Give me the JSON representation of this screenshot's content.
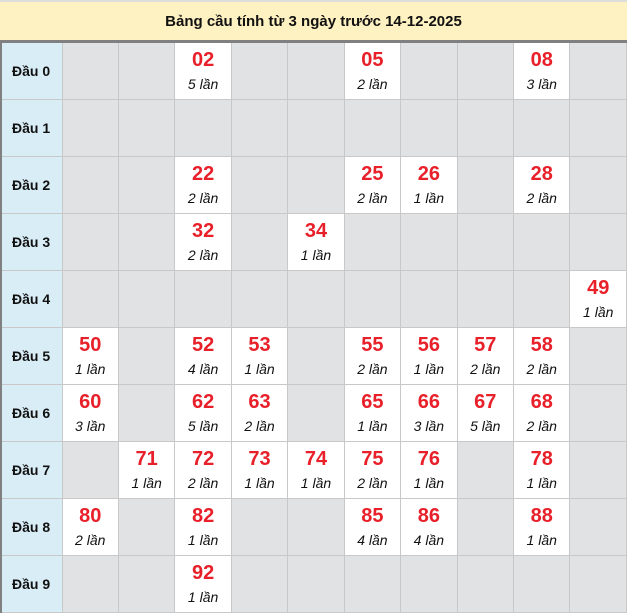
{
  "title": "Bảng cầu tính từ 3 ngày trước 14-12-2025",
  "colors": {
    "number": "#e8202a",
    "header_bg": "#fff2c2",
    "row_label_bg": "#d9edf7",
    "empty_bg": "#e1e2e4"
  },
  "rows": [
    {
      "label": "Đầu 0",
      "cells": [
        null,
        null,
        {
          "num": "02",
          "count": "5 lần"
        },
        null,
        null,
        {
          "num": "05",
          "count": "2 lần"
        },
        null,
        null,
        {
          "num": "08",
          "count": "3 lần"
        },
        null
      ]
    },
    {
      "label": "Đầu 1",
      "cells": [
        null,
        null,
        null,
        null,
        null,
        null,
        null,
        null,
        null,
        null
      ]
    },
    {
      "label": "Đầu 2",
      "cells": [
        null,
        null,
        {
          "num": "22",
          "count": "2 lần"
        },
        null,
        null,
        {
          "num": "25",
          "count": "2 lần"
        },
        {
          "num": "26",
          "count": "1 lần"
        },
        null,
        {
          "num": "28",
          "count": "2 lần"
        },
        null
      ]
    },
    {
      "label": "Đầu 3",
      "cells": [
        null,
        null,
        {
          "num": "32",
          "count": "2 lần"
        },
        null,
        {
          "num": "34",
          "count": "1 lần"
        },
        null,
        null,
        null,
        null,
        null
      ]
    },
    {
      "label": "Đầu 4",
      "cells": [
        null,
        null,
        null,
        null,
        null,
        null,
        null,
        null,
        null,
        {
          "num": "49",
          "count": "1 lần"
        }
      ]
    },
    {
      "label": "Đầu 5",
      "cells": [
        {
          "num": "50",
          "count": "1 lần"
        },
        null,
        {
          "num": "52",
          "count": "4 lần"
        },
        {
          "num": "53",
          "count": "1 lần"
        },
        null,
        {
          "num": "55",
          "count": "2 lần"
        },
        {
          "num": "56",
          "count": "1 lần"
        },
        {
          "num": "57",
          "count": "2 lần"
        },
        {
          "num": "58",
          "count": "2 lần"
        },
        null
      ]
    },
    {
      "label": "Đầu 6",
      "cells": [
        {
          "num": "60",
          "count": "3 lần"
        },
        null,
        {
          "num": "62",
          "count": "5 lần"
        },
        {
          "num": "63",
          "count": "2 lần"
        },
        null,
        {
          "num": "65",
          "count": "1 lần"
        },
        {
          "num": "66",
          "count": "3 lần"
        },
        {
          "num": "67",
          "count": "5 lần"
        },
        {
          "num": "68",
          "count": "2 lần"
        },
        null
      ]
    },
    {
      "label": "Đầu 7",
      "cells": [
        null,
        {
          "num": "71",
          "count": "1 lần"
        },
        {
          "num": "72",
          "count": "2 lần"
        },
        {
          "num": "73",
          "count": "1 lần"
        },
        {
          "num": "74",
          "count": "1 lần"
        },
        {
          "num": "75",
          "count": "2 lần"
        },
        {
          "num": "76",
          "count": "1 lần"
        },
        null,
        {
          "num": "78",
          "count": "1 lần"
        },
        null
      ]
    },
    {
      "label": "Đầu 8",
      "cells": [
        {
          "num": "80",
          "count": "2 lần"
        },
        null,
        {
          "num": "82",
          "count": "1 lần"
        },
        null,
        null,
        {
          "num": "85",
          "count": "4 lần"
        },
        {
          "num": "86",
          "count": "4 lần"
        },
        null,
        {
          "num": "88",
          "count": "1 lần"
        },
        null
      ]
    },
    {
      "label": "Đầu 9",
      "cells": [
        null,
        null,
        {
          "num": "92",
          "count": "1 lần"
        },
        null,
        null,
        null,
        null,
        null,
        null,
        null
      ]
    }
  ]
}
